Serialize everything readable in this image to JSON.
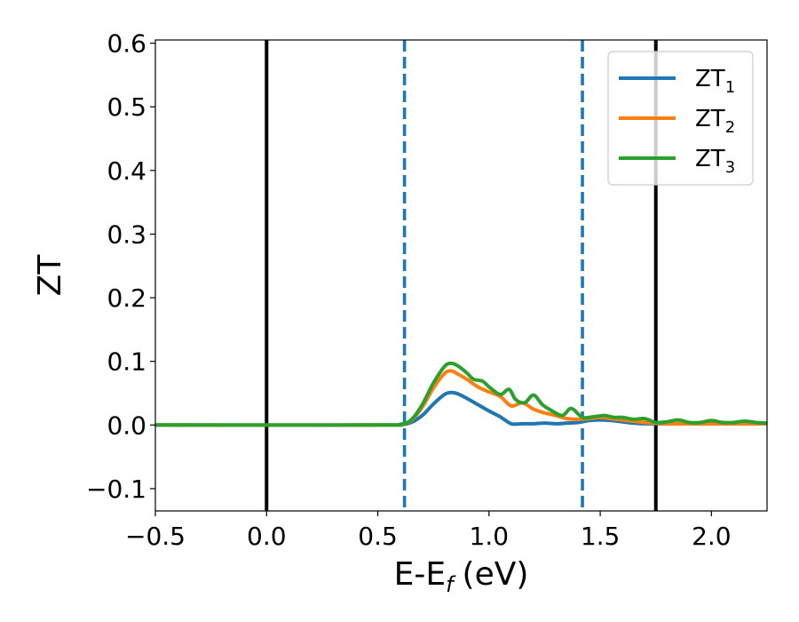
{
  "chart_data": {
    "type": "line",
    "xlabel": "E-E",
    "xlabel_sub": "f",
    "xlabel_unit": "(eV)",
    "ylabel": "ZT",
    "xlim": [
      -0.5,
      2.25
    ],
    "ylim": [
      -0.135,
      0.605
    ],
    "xticks": [
      -0.5,
      0.0,
      0.5,
      1.0,
      1.5,
      2.0
    ],
    "xtick_labels": [
      "−0.5",
      "0.0",
      "0.5",
      "1.0",
      "1.5",
      "2.0"
    ],
    "yticks": [
      -0.1,
      0.0,
      0.1,
      0.2,
      0.3,
      0.4,
      0.5,
      0.6
    ],
    "ytick_labels": [
      "−0.1",
      "0.0",
      "0.1",
      "0.2",
      "0.3",
      "0.4",
      "0.5",
      "0.6"
    ],
    "grid": false,
    "legend_position": "top-right",
    "vertical_lines": [
      {
        "x": 0.0,
        "style": "solid",
        "color": "#000000"
      },
      {
        "x": 1.75,
        "style": "solid",
        "color": "#000000"
      },
      {
        "x": 0.62,
        "style": "dashed",
        "color": "#1f77b4"
      },
      {
        "x": 1.42,
        "style": "dashed",
        "color": "#1f77b4"
      }
    ],
    "series": [
      {
        "name": "ZT",
        "name_sub": "1",
        "color": "#1f77b4",
        "x": [
          -0.5,
          0.5,
          0.6,
          0.65,
          0.7,
          0.75,
          0.8,
          0.83,
          0.86,
          0.9,
          0.95,
          1.0,
          1.05,
          1.1,
          1.15,
          1.2,
          1.25,
          1.3,
          1.35,
          1.4,
          1.45,
          1.5,
          1.55,
          1.6,
          1.65,
          1.7,
          1.75,
          1.8,
          1.9,
          2.0,
          2.1,
          2.25
        ],
        "y": [
          0.0,
          0.0,
          0.0005,
          0.004,
          0.015,
          0.033,
          0.048,
          0.051,
          0.049,
          0.042,
          0.032,
          0.022,
          0.013,
          0.002,
          0.002,
          0.002,
          0.003,
          0.002,
          0.003,
          0.004,
          0.007,
          0.008,
          0.007,
          0.005,
          0.003,
          0.002,
          0.002,
          0.002,
          0.002,
          0.002,
          0.002,
          0.002
        ]
      },
      {
        "name": "ZT",
        "name_sub": "2",
        "color": "#ff7f0e",
        "x": [
          -0.5,
          0.5,
          0.6,
          0.65,
          0.7,
          0.75,
          0.8,
          0.83,
          0.86,
          0.9,
          0.95,
          1.0,
          1.05,
          1.1,
          1.15,
          1.2,
          1.25,
          1.3,
          1.35,
          1.4,
          1.45,
          1.5,
          1.55,
          1.6,
          1.65,
          1.7,
          1.75,
          1.8,
          1.9,
          2.0,
          2.1,
          2.25
        ],
        "y": [
          0.0,
          0.0,
          0.001,
          0.007,
          0.028,
          0.058,
          0.081,
          0.085,
          0.08,
          0.072,
          0.06,
          0.052,
          0.045,
          0.03,
          0.035,
          0.025,
          0.019,
          0.015,
          0.01,
          0.009,
          0.01,
          0.012,
          0.01,
          0.008,
          0.006,
          0.004,
          0.003,
          0.002,
          0.002,
          0.002,
          0.002,
          0.002
        ]
      },
      {
        "name": "ZT",
        "name_sub": "3",
        "color": "#2ca02c",
        "x": [
          -0.5,
          0.5,
          0.6,
          0.65,
          0.7,
          0.75,
          0.8,
          0.83,
          0.86,
          0.9,
          0.93,
          0.97,
          1.0,
          1.05,
          1.09,
          1.12,
          1.16,
          1.2,
          1.24,
          1.28,
          1.33,
          1.37,
          1.42,
          1.47,
          1.52,
          1.56,
          1.6,
          1.65,
          1.7,
          1.75,
          1.8,
          1.85,
          1.9,
          1.95,
          2.0,
          2.05,
          2.1,
          2.15,
          2.2,
          2.25
        ],
        "y": [
          0.0,
          0.0,
          0.001,
          0.008,
          0.032,
          0.066,
          0.092,
          0.097,
          0.093,
          0.082,
          0.072,
          0.069,
          0.06,
          0.048,
          0.056,
          0.04,
          0.035,
          0.047,
          0.032,
          0.023,
          0.015,
          0.026,
          0.012,
          0.013,
          0.015,
          0.012,
          0.012,
          0.009,
          0.01,
          0.004,
          0.005,
          0.008,
          0.004,
          0.004,
          0.007,
          0.004,
          0.004,
          0.006,
          0.004,
          0.003
        ]
      }
    ]
  }
}
